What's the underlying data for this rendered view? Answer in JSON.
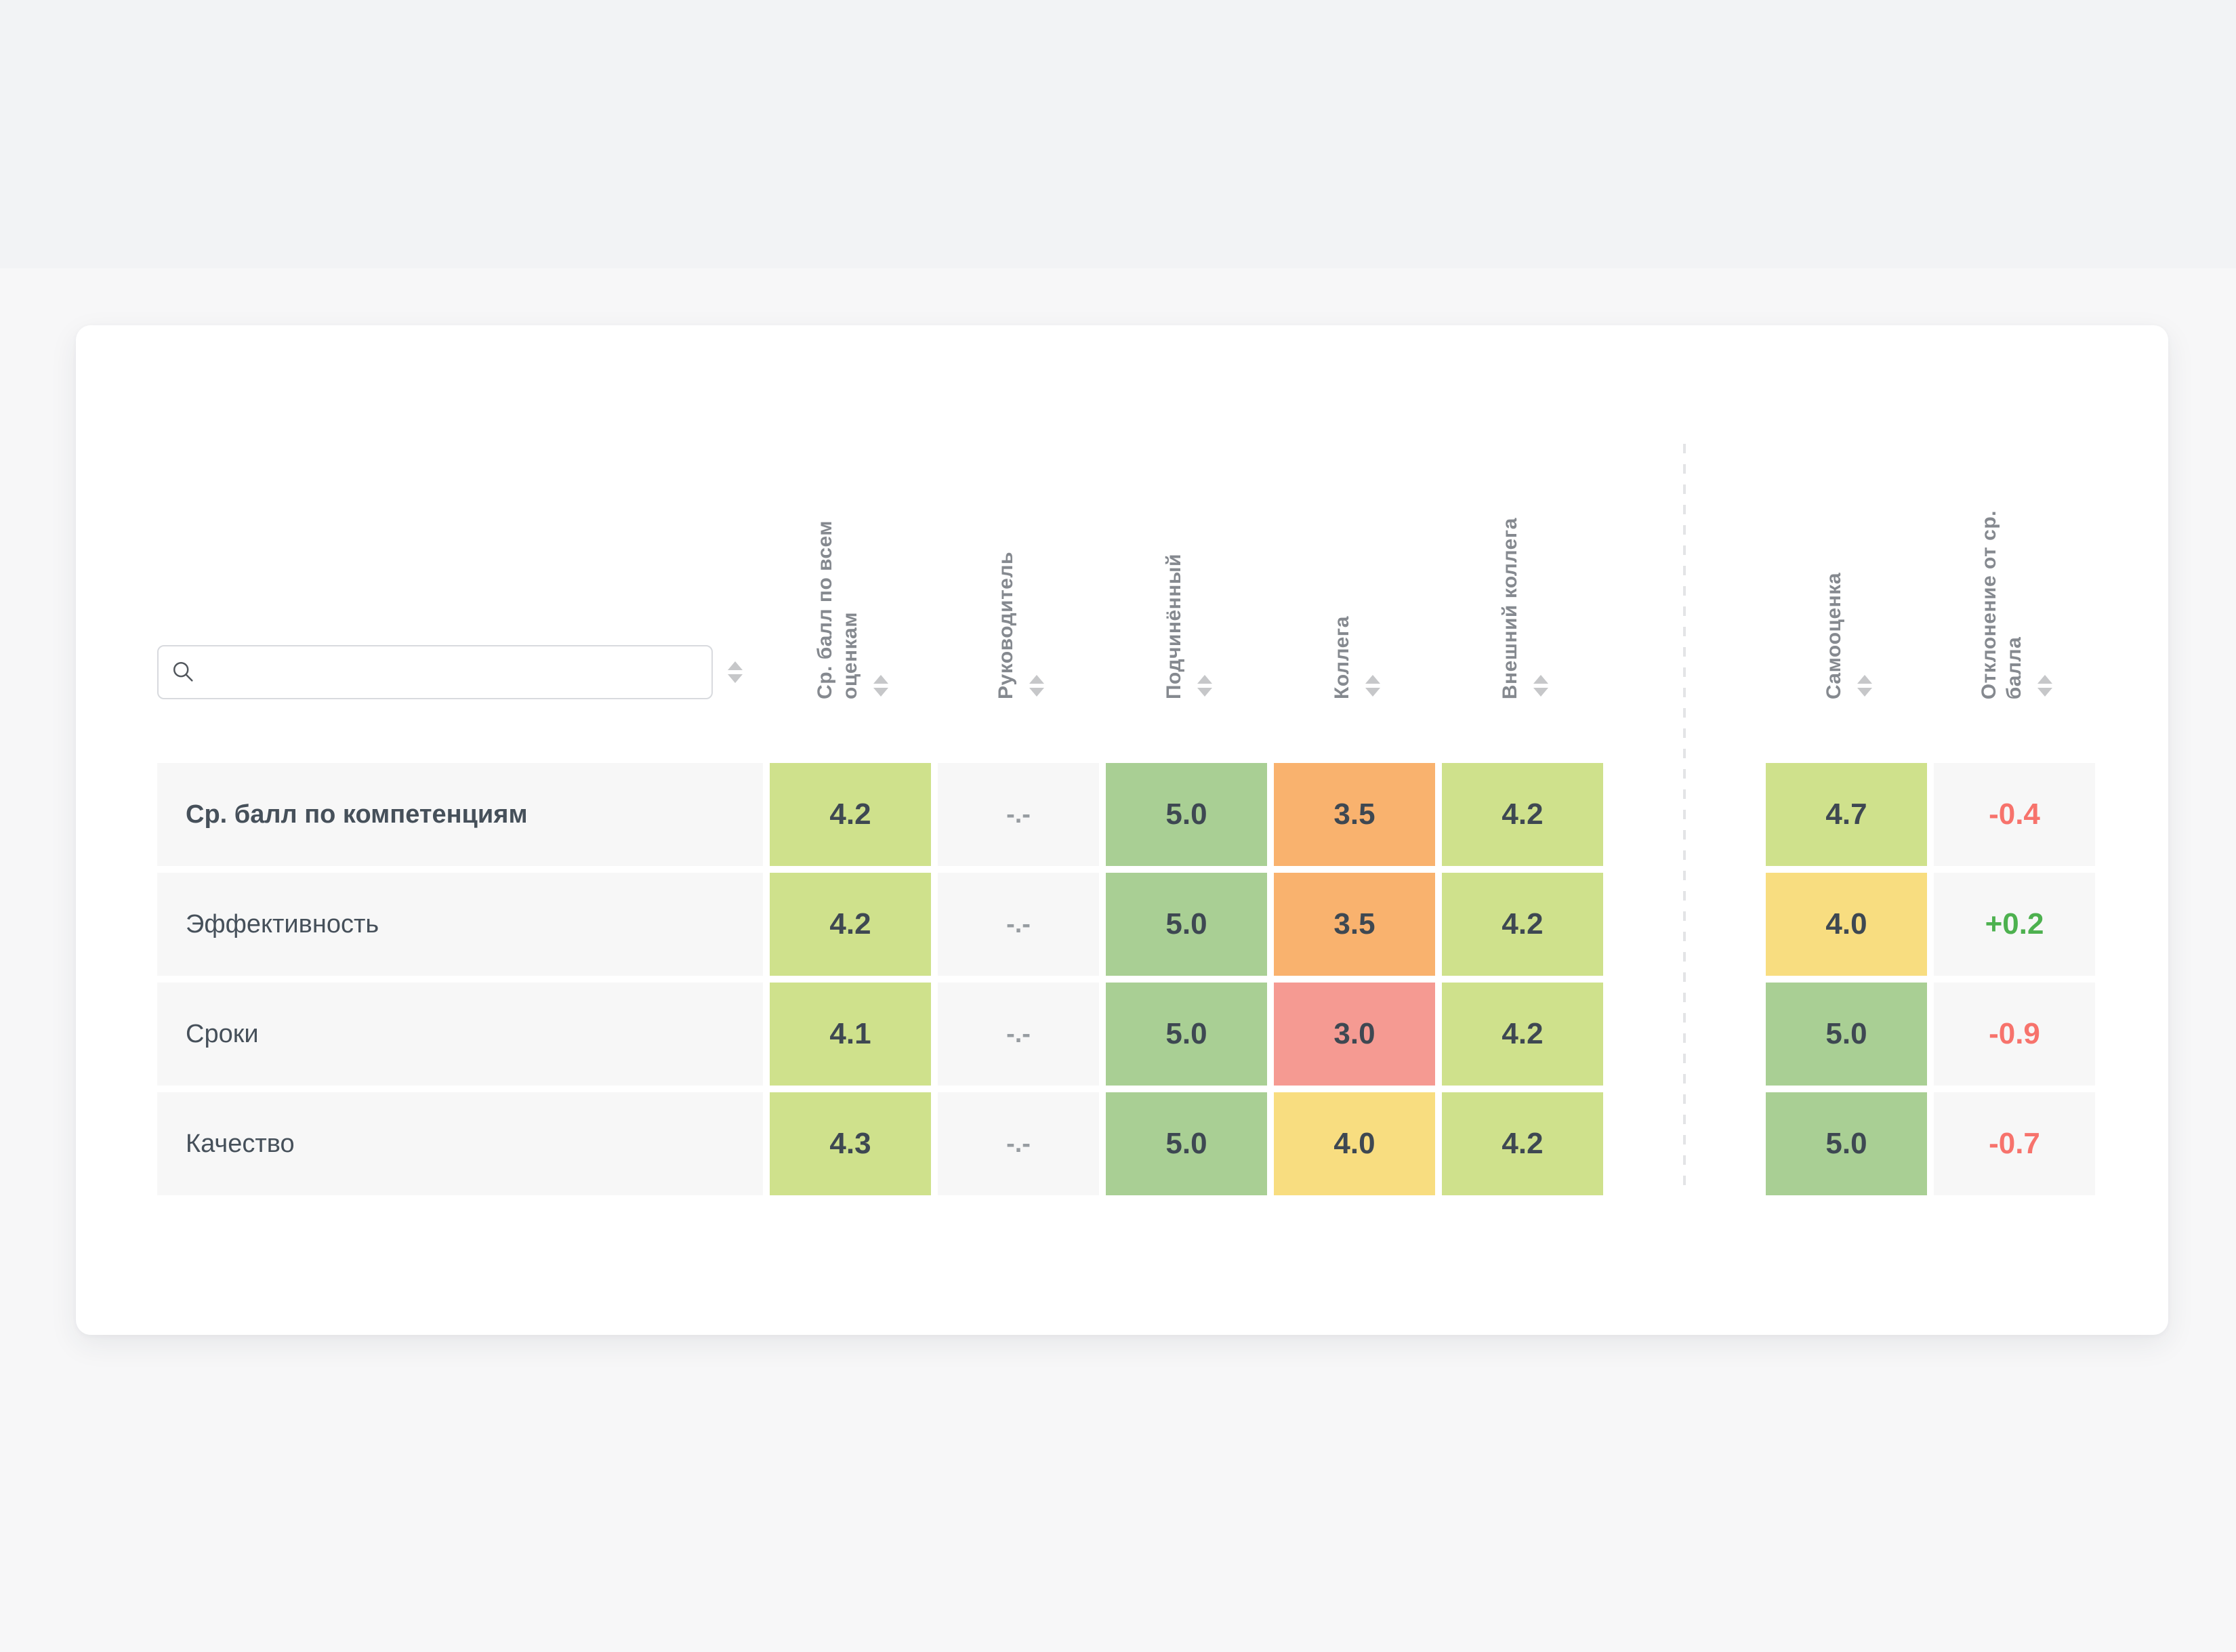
{
  "search": {
    "placeholder": ""
  },
  "colors": {
    "light_green": "#cfe18c",
    "green": "#a9cf94",
    "orange": "#f9b26e",
    "red": "#f59a92",
    "yellow": "#f8dd80",
    "neutral": "#f7f7f7",
    "deviation_negative": "#f7736c",
    "deviation_positive": "#4db14f",
    "muted_text": "#979ca1"
  },
  "table": {
    "columns": [
      {
        "id": "avg_all",
        "label": "Ср. балл по всем\nоценкам"
      },
      {
        "id": "manager",
        "label": "Руководитель"
      },
      {
        "id": "subordinate",
        "label": "Подчинённый"
      },
      {
        "id": "peer",
        "label": "Коллега"
      },
      {
        "id": "external_peer",
        "label": "Внешний коллега"
      },
      {
        "id": "self",
        "label": "Самооценка"
      },
      {
        "id": "deviation",
        "label": "Отклонение от ср.\nбалла"
      }
    ],
    "rows": [
      {
        "label": "Ср. балл по компетенциям",
        "bold": true,
        "cells": [
          {
            "value": "4.2",
            "color": "light_green"
          },
          {
            "value": "-.-",
            "color": "neutral",
            "muted": true
          },
          {
            "value": "5.0",
            "color": "green"
          },
          {
            "value": "3.5",
            "color": "orange"
          },
          {
            "value": "4.2",
            "color": "light_green"
          },
          {
            "value": "4.7",
            "color": "light_green"
          },
          {
            "value": "-0.4",
            "color": "neutral",
            "trend": "negative"
          }
        ]
      },
      {
        "label": "Эффективность",
        "bold": false,
        "cells": [
          {
            "value": "4.2",
            "color": "light_green"
          },
          {
            "value": "-.-",
            "color": "neutral",
            "muted": true
          },
          {
            "value": "5.0",
            "color": "green"
          },
          {
            "value": "3.5",
            "color": "orange"
          },
          {
            "value": "4.2",
            "color": "light_green"
          },
          {
            "value": "4.0",
            "color": "yellow"
          },
          {
            "value": "+0.2",
            "color": "neutral",
            "trend": "positive"
          }
        ]
      },
      {
        "label": "Сроки",
        "bold": false,
        "cells": [
          {
            "value": "4.1",
            "color": "light_green"
          },
          {
            "value": "-.-",
            "color": "neutral",
            "muted": true
          },
          {
            "value": "5.0",
            "color": "green"
          },
          {
            "value": "3.0",
            "color": "red"
          },
          {
            "value": "4.2",
            "color": "light_green"
          },
          {
            "value": "5.0",
            "color": "green"
          },
          {
            "value": "-0.9",
            "color": "neutral",
            "trend": "negative"
          }
        ]
      },
      {
        "label": "Качество",
        "bold": false,
        "cells": [
          {
            "value": "4.3",
            "color": "light_green"
          },
          {
            "value": "-.-",
            "color": "neutral",
            "muted": true
          },
          {
            "value": "5.0",
            "color": "green"
          },
          {
            "value": "4.0",
            "color": "yellow"
          },
          {
            "value": "4.2",
            "color": "light_green"
          },
          {
            "value": "5.0",
            "color": "green"
          },
          {
            "value": "-0.7",
            "color": "neutral",
            "trend": "negative"
          }
        ]
      }
    ]
  }
}
